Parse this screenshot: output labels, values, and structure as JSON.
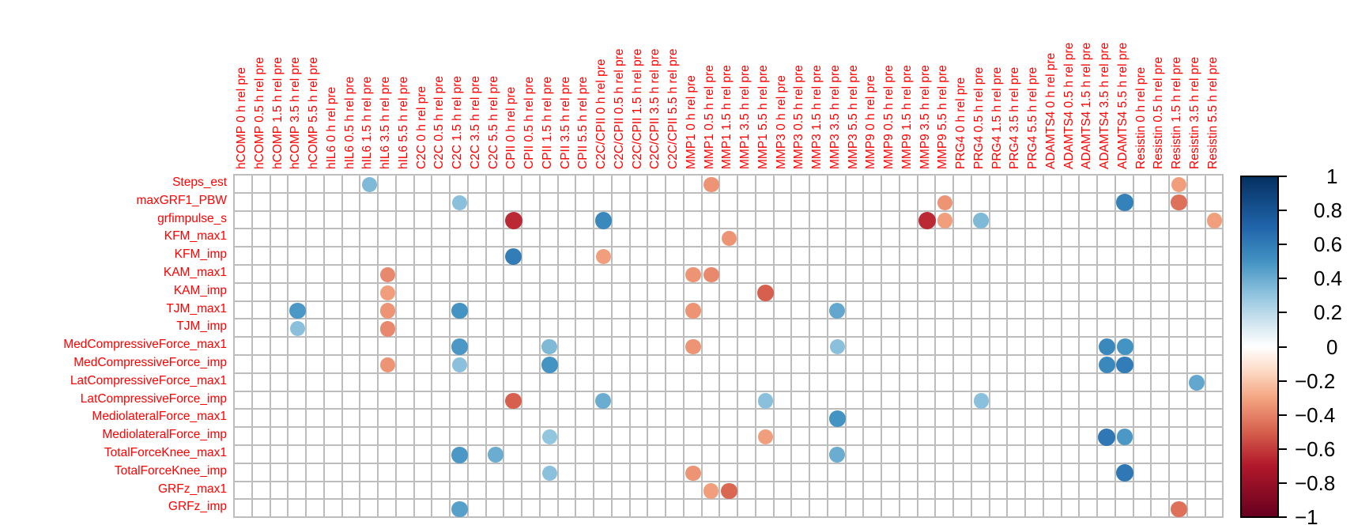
{
  "chart_data": {
    "type": "heatmap",
    "subtype": "correlation-circle-matrix",
    "title": "",
    "xlabel": "",
    "ylabel": "",
    "columns": [
      "hCOMP 0 h rel pre",
      "hCOMP 0.5 h rel pre",
      "hCOMP 1.5 h rel pre",
      "hCOMP 3.5 h rel pre",
      "hCOMP 5.5 h rel pre",
      "hIL6 0 h rel pre",
      "hIL6 0.5 h rel pre",
      "hIL6 1.5 h rel pre",
      "hIL6 3.5 h rel pre",
      "hIL6 5.5 h rel pre",
      "C2C 0 h rel pre",
      "C2C 0.5 h rel pre",
      "C2C 1.5 h rel pre",
      "C2C 3.5 h rel pre",
      "C2C 5.5 h rel pre",
      "CPII 0 h rel pre",
      "CPII 0.5 h rel pre",
      "CPII 1.5 h rel pre",
      "CPII 3.5 h rel pre",
      "CPII 5.5 h rel pre",
      "C2C/CPII 0 h rel pre",
      "C2C/CPII 0.5 h rel pre",
      "C2C/CPII 1.5 h rel pre",
      "C2C/CPII 3.5 h rel pre",
      "C2C/CPII 5.5 h rel pre",
      "MMP1 0 h rel pre",
      "MMP1 0.5 h rel pre",
      "MMP1 1.5 h rel pre",
      "MMP1 3.5 h rel pre",
      "MMP1 5.5 h rel pre",
      "MMP3 0 h rel pre",
      "MMP3 0.5 h rel pre",
      "MMP3 1.5 h rel pre",
      "MMP3 3.5 h rel pre",
      "MMP3 5.5 h rel pre",
      "MMP9 0 h rel pre",
      "MMP9 0.5 h rel pre",
      "MMP9 1.5 h rel pre",
      "MMP9 3.5 h rel pre",
      "MMP9 5.5 h rel pre",
      "PRG4 0 h rel pre",
      "PRG4 0.5 h rel pre",
      "PRG4 1.5 h rel pre",
      "PRG4 3.5 h rel pre",
      "PRG4 5.5 h rel pre",
      "ADAMTS4 0 h rel pre",
      "ADAMTS4 0.5 h rel pre",
      "ADAMTS4 1.5 h rel pre",
      "ADAMTS4 3.5 h rel pre",
      "ADAMTS4 5.5 h rel pre",
      "Resistin 0 h rel pre",
      "Resistin 0.5 h rel pre",
      "Resistin 1.5 h rel pre",
      "Resistin 3.5 h rel pre",
      "Resistin 5.5 h rel pre"
    ],
    "rows": [
      "Steps_est",
      "maxGRF1_PBW",
      "grfimpulse_s",
      "KFM_max1",
      "KFM_imp",
      "KAM_max1",
      "KAM_imp",
      "TJM_max1",
      "TJM_imp",
      "MedCompressiveForce_max1",
      "MedCompressiveForce_imp",
      "LatCompressiveForce_max1",
      "LatCompressiveForce_imp",
      "MediolateralForce_max1",
      "MediolateralForce_imp",
      "TotalForceKnee_max1",
      "TotalForceKnee_imp",
      "GRFz_max1",
      "GRFz_imp"
    ],
    "cells_format": [
      "row_index",
      "col_index",
      "correlation"
    ],
    "cells": [
      [
        0,
        7,
        0.45
      ],
      [
        0,
        26,
        -0.45
      ],
      [
        0,
        52,
        -0.42
      ],
      [
        1,
        12,
        0.42
      ],
      [
        1,
        39,
        -0.45
      ],
      [
        1,
        49,
        0.68
      ],
      [
        1,
        52,
        -0.55
      ],
      [
        2,
        15,
        -0.75
      ],
      [
        2,
        20,
        0.65
      ],
      [
        2,
        38,
        -0.75
      ],
      [
        2,
        39,
        -0.42
      ],
      [
        2,
        41,
        0.45
      ],
      [
        2,
        54,
        -0.42
      ],
      [
        3,
        27,
        -0.45
      ],
      [
        4,
        15,
        0.7
      ],
      [
        4,
        20,
        -0.42
      ],
      [
        5,
        8,
        -0.48
      ],
      [
        5,
        25,
        -0.45
      ],
      [
        5,
        26,
        -0.48
      ],
      [
        6,
        8,
        -0.42
      ],
      [
        6,
        29,
        -0.6
      ],
      [
        7,
        3,
        0.58
      ],
      [
        7,
        8,
        -0.45
      ],
      [
        7,
        12,
        0.6
      ],
      [
        7,
        25,
        -0.45
      ],
      [
        7,
        33,
        0.52
      ],
      [
        8,
        3,
        0.42
      ],
      [
        8,
        8,
        -0.48
      ],
      [
        9,
        12,
        0.58
      ],
      [
        9,
        17,
        0.45
      ],
      [
        9,
        25,
        -0.45
      ],
      [
        9,
        33,
        0.42
      ],
      [
        9,
        48,
        0.65
      ],
      [
        9,
        49,
        0.6
      ],
      [
        10,
        8,
        -0.45
      ],
      [
        10,
        12,
        0.42
      ],
      [
        10,
        17,
        0.6
      ],
      [
        10,
        48,
        0.65
      ],
      [
        10,
        49,
        0.7
      ],
      [
        11,
        53,
        0.52
      ],
      [
        12,
        15,
        -0.6
      ],
      [
        12,
        20,
        0.5
      ],
      [
        12,
        29,
        0.42
      ],
      [
        12,
        41,
        0.42
      ],
      [
        13,
        33,
        0.6
      ],
      [
        14,
        17,
        0.4
      ],
      [
        14,
        29,
        -0.42
      ],
      [
        14,
        48,
        0.72
      ],
      [
        14,
        49,
        0.58
      ],
      [
        15,
        12,
        0.58
      ],
      [
        15,
        14,
        0.5
      ],
      [
        15,
        33,
        0.5
      ],
      [
        16,
        17,
        0.42
      ],
      [
        16,
        25,
        -0.45
      ],
      [
        16,
        49,
        0.72
      ],
      [
        17,
        26,
        -0.42
      ],
      [
        17,
        27,
        -0.58
      ],
      [
        18,
        12,
        0.55
      ],
      [
        18,
        52,
        -0.55
      ]
    ],
    "legend": {
      "type": "colorbar",
      "position": "right",
      "range": [
        -1,
        1
      ],
      "ticks": [
        "1",
        "0.8",
        "0.6",
        "0.4",
        "0.2",
        "0",
        "−0.2",
        "−0.4",
        "−0.6",
        "−0.8",
        "−1"
      ],
      "colors": {
        "neg_strong": "#67001f",
        "neg": "#d6604d",
        "zero": "#ffffff",
        "pos": "#4393c3",
        "pos_strong": "#053061"
      }
    },
    "grid": true,
    "label_color": "#ff0000"
  }
}
